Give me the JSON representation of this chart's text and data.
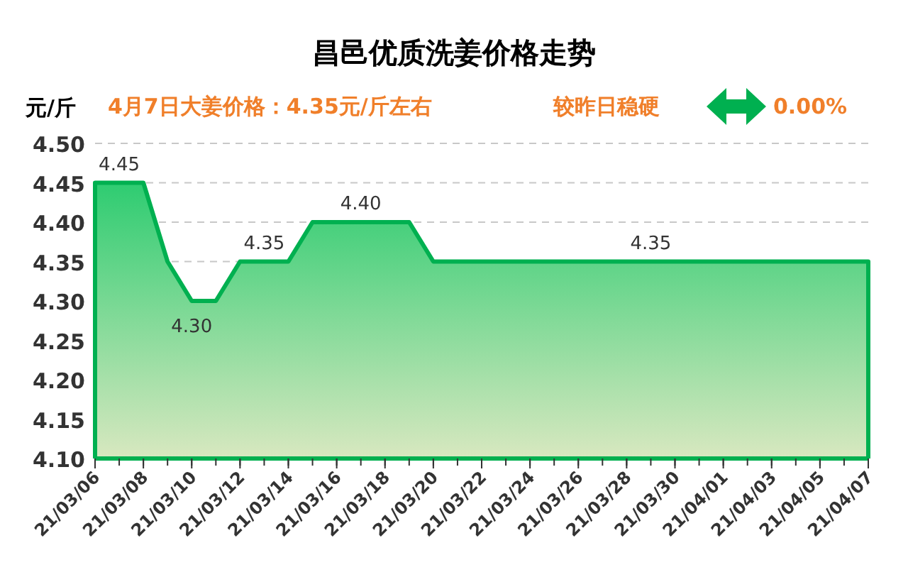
{
  "chart_data": {
    "type": "area",
    "title": "昌邑优质洗姜价格走势",
    "ylabel": "元/斤",
    "annotations": [
      "4月7日大姜价格：4.35元/斤左右",
      "较昨日稳硬",
      "0.00%"
    ],
    "x": [
      "--03-06",
      "--03-07",
      "--03-08",
      "--03-09",
      "--03-10",
      "--03-11",
      "--03-12",
      "--03-13",
      "--03-14",
      "--03-15",
      "--03-16",
      "--03-17",
      "--03-18",
      "--03-19",
      "--03-20",
      "--03-21",
      "--03-22",
      "--03-23",
      "--03-24",
      "--03-25",
      "--03-26",
      "--03-27",
      "--03-28",
      "--03-29",
      "--03-30",
      "--03-31",
      "--04-01",
      "--04-02",
      "--04-03",
      "--04-04",
      "--04-05",
      "--04-06",
      "--04-07"
    ],
    "series": [
      {
        "color": "#00b050",
        "values": [
          4.45,
          4.45,
          4.45,
          4.35,
          4.3,
          4.3,
          4.35,
          4.35,
          4.35,
          4.4,
          4.4,
          4.4,
          4.4,
          4.4,
          4.35,
          4.35,
          4.35,
          4.35,
          4.35,
          4.35,
          4.35,
          4.35,
          4.35,
          4.35,
          4.35,
          4.35,
          4.35,
          4.35,
          4.35,
          4.35,
          4.35,
          4.35,
          4.35
        ],
        "value_labels": [
          null,
          "4.45",
          null,
          null,
          "4.30",
          null,
          null,
          "4.35",
          null,
          null,
          null,
          "4.40",
          null,
          null,
          null,
          null,
          null,
          null,
          null,
          null,
          null,
          null,
          null,
          "4.35",
          null,
          null,
          null,
          null,
          null,
          null,
          null,
          null,
          null
        ]
      }
    ],
    "xlim": [
      "--03-06",
      "--04-07"
    ],
    "xticks": [
      {
        "value": "--03-06",
        "label": "21/03/06"
      },
      {
        "value": "--03-08",
        "label": "21/03/08"
      },
      {
        "value": "--03-10",
        "label": "21/03/10"
      },
      {
        "value": "--03-12",
        "label": "21/03/12"
      },
      {
        "value": "--03-14",
        "label": "21/03/14"
      },
      {
        "value": "--03-16",
        "label": "21/03/16"
      },
      {
        "value": "--03-18",
        "label": "21/03/18"
      },
      {
        "value": "--03-20",
        "label": "21/03/20"
      },
      {
        "value": "--03-22",
        "label": "21/03/22"
      },
      {
        "value": "--03-24",
        "label": "21/03/24"
      },
      {
        "value": "--03-26",
        "label": "21/03/26"
      },
      {
        "value": "--03-28",
        "label": "21/03/28"
      },
      {
        "value": "--03-30",
        "label": "21/03/30"
      },
      {
        "value": "--04-01",
        "label": "21/04/01"
      },
      {
        "value": "--04-03",
        "label": "21/04/03"
      },
      {
        "value": "--04-05",
        "label": "21/04/05"
      },
      {
        "value": "--04-07",
        "label": "21/04/07"
      }
    ],
    "ylim": [
      4.1,
      4.5
    ],
    "yticks": [
      {
        "value": 4.1,
        "label": "4.10"
      },
      {
        "value": 4.15,
        "label": "4.15"
      },
      {
        "value": 4.2,
        "label": "4.20"
      },
      {
        "value": 4.25,
        "label": "4.25"
      },
      {
        "value": 4.3,
        "label": "4.30"
      },
      {
        "value": 4.35,
        "label": "4.35"
      },
      {
        "value": 4.4,
        "label": "4.40"
      },
      {
        "value": 4.45,
        "label": "4.45"
      },
      {
        "value": 4.5,
        "label": "4.50"
      }
    ],
    "grid": "y",
    "marker": "none",
    "line_style": "solid"
  }
}
